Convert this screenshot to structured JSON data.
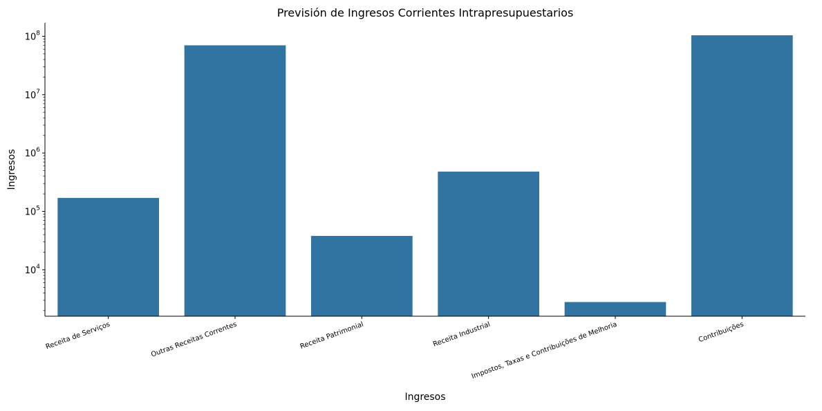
{
  "chart_data": {
    "type": "bar",
    "title": "Previsión de Ingresos Corrientes Intrapresupuestarios",
    "xlabel": "Ingresos",
    "ylabel": "Ingresos",
    "yscale": "log",
    "ylim": [
      1600,
      170000000
    ],
    "grid": false,
    "legend": "none",
    "color": "#3274a1",
    "categories": [
      "Receita de Serviços",
      "Outras Receitas Correntes",
      "Receita Patrimonial",
      "Receita Industrial",
      "Impostos, Taxas e Contribuições de Melhoria",
      "Contribuições"
    ],
    "values": [
      170000,
      70000000,
      38000,
      480000,
      2800,
      104000000
    ],
    "yticks": [
      {
        "value": 10000,
        "base": "10",
        "exp": "4"
      },
      {
        "value": 100000,
        "base": "10",
        "exp": "5"
      },
      {
        "value": 1000000,
        "base": "10",
        "exp": "6"
      },
      {
        "value": 10000000,
        "base": "10",
        "exp": "7"
      },
      {
        "value": 100000000,
        "base": "10",
        "exp": "8"
      }
    ]
  }
}
